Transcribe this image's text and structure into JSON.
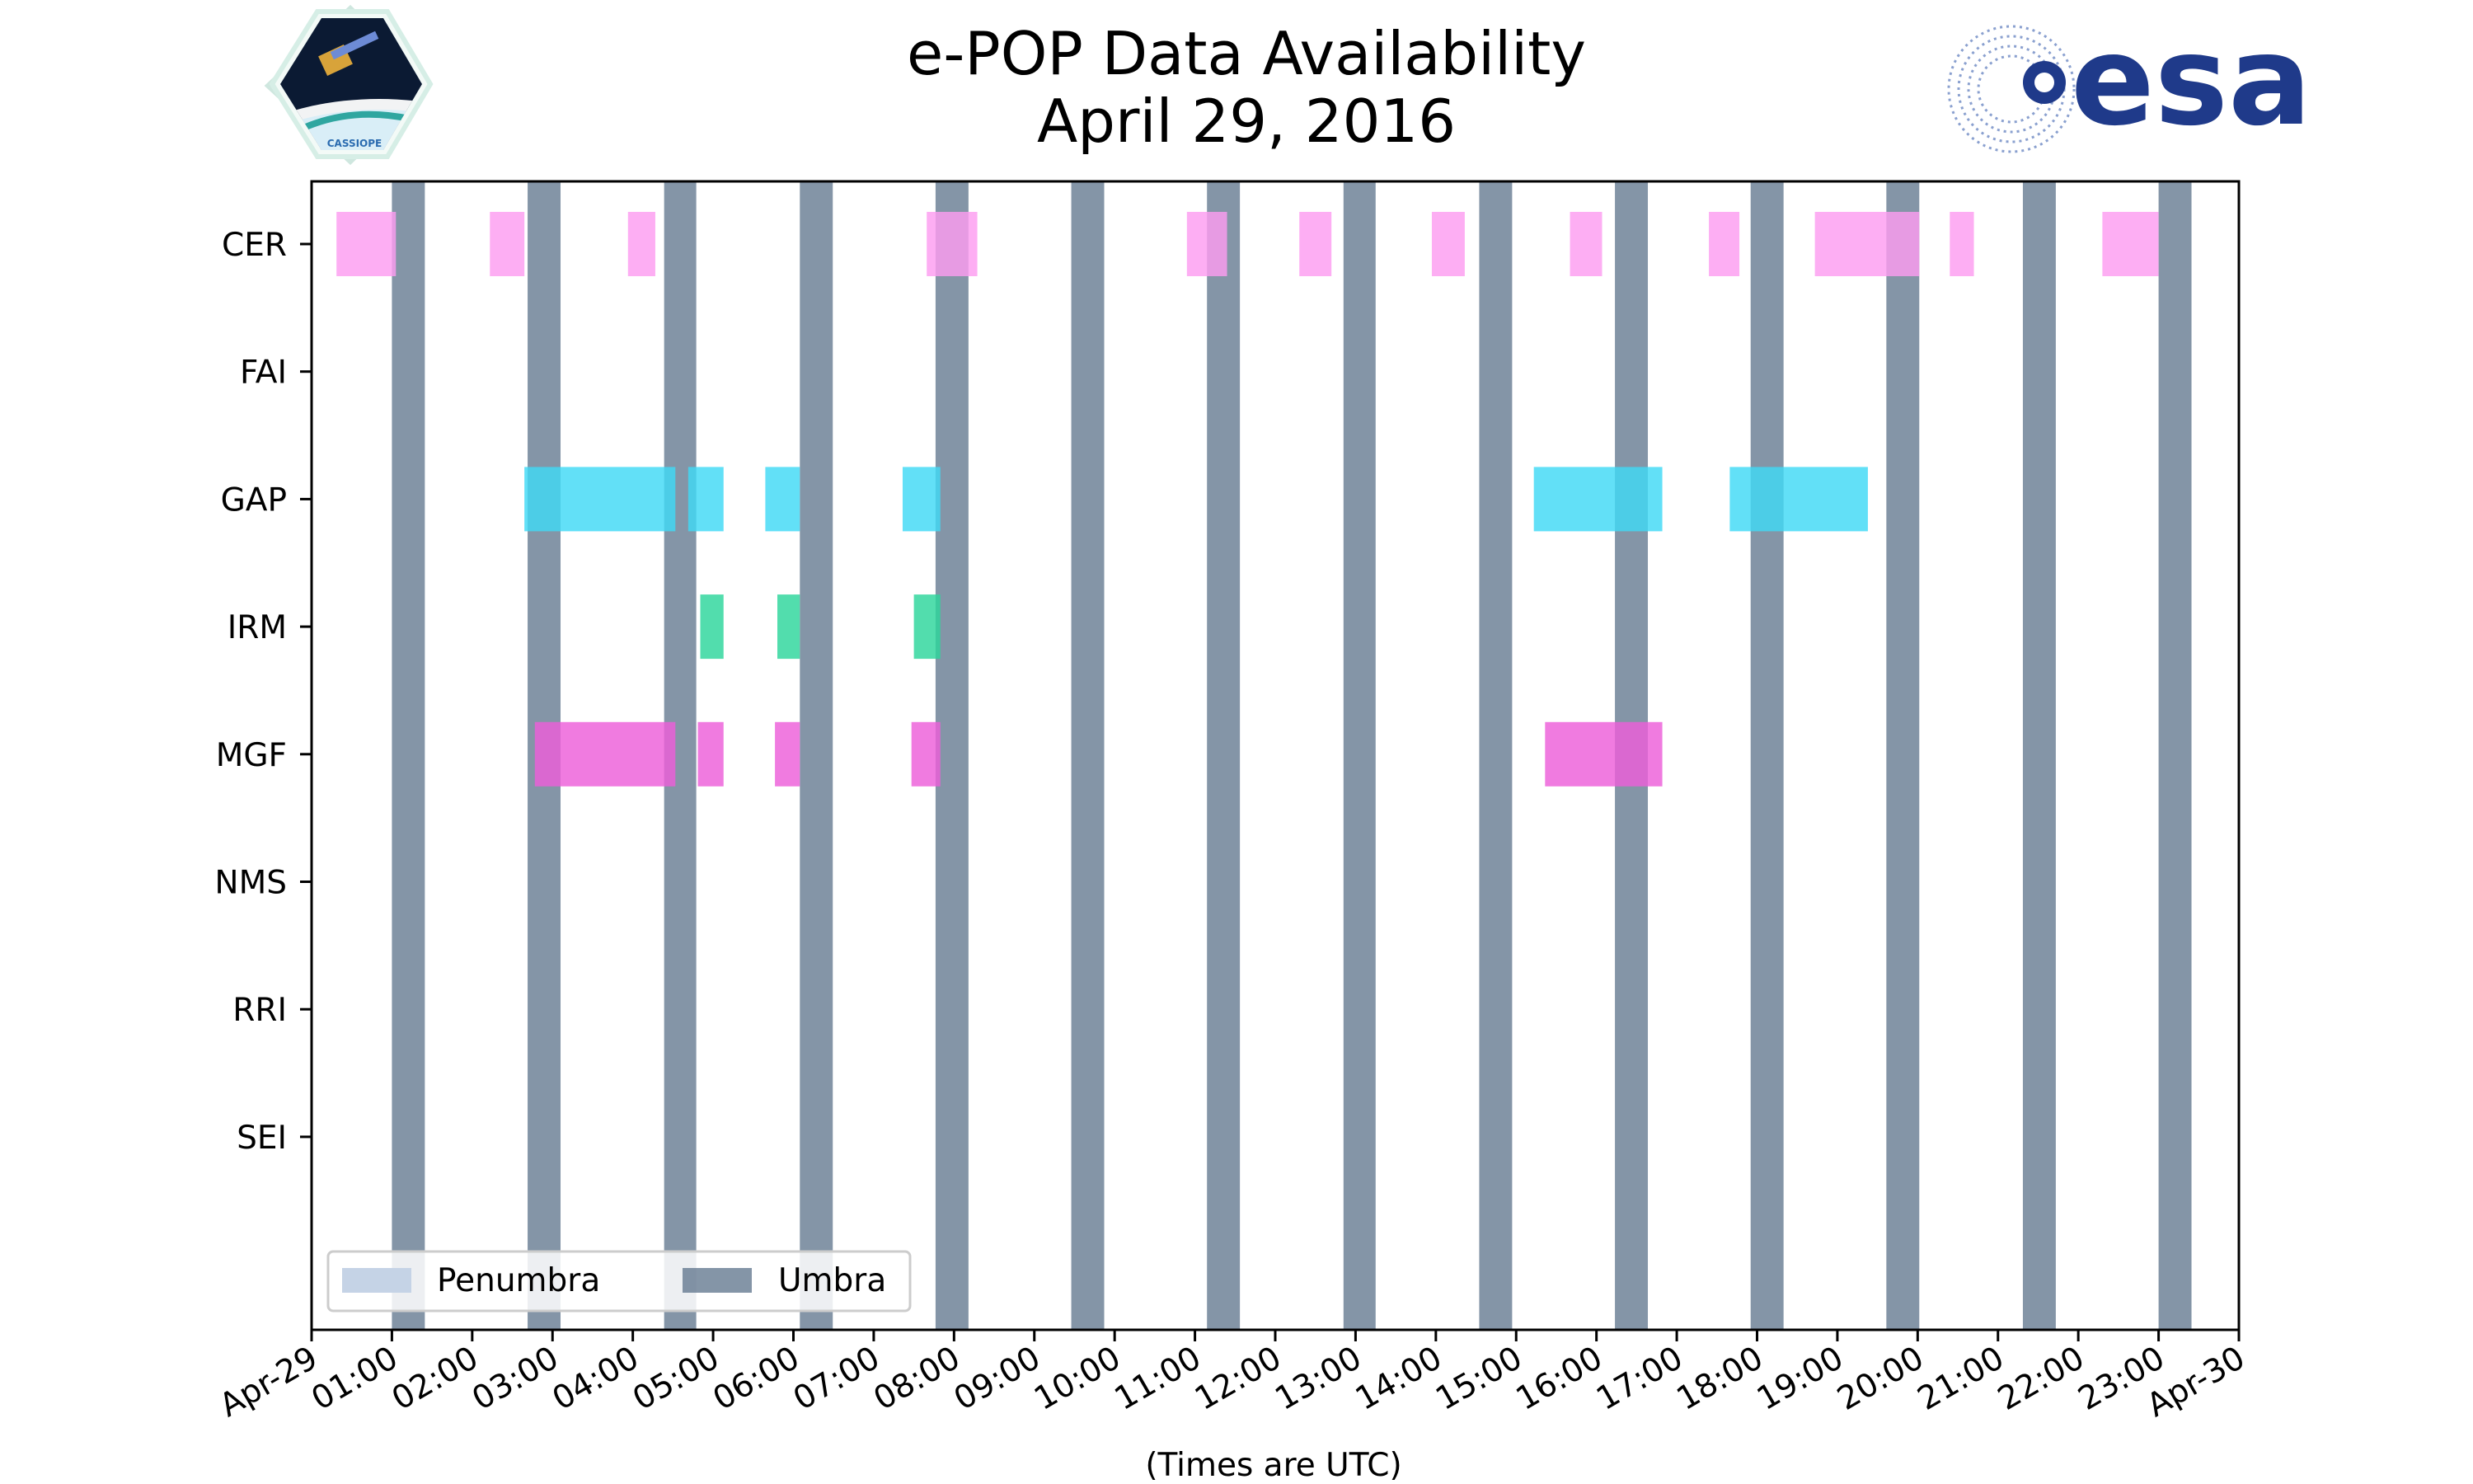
{
  "logos": {
    "left_text": "CASSIOPE",
    "right_text": "esa",
    "right_color": "#1f3a8a"
  },
  "chart_data": {
    "type": "timeline",
    "title": "e-POP Data Availability",
    "subtitle": "April 29, 2016",
    "xlabel": "(Times are UTC)",
    "ylabel": "",
    "x_range_hours": [
      0,
      24
    ],
    "x_tick_labels": [
      "Apr-29",
      "01:00",
      "02:00",
      "03:00",
      "04:00",
      "05:00",
      "06:00",
      "07:00",
      "08:00",
      "09:00",
      "10:00",
      "11:00",
      "12:00",
      "13:00",
      "14:00",
      "15:00",
      "16:00",
      "17:00",
      "18:00",
      "19:00",
      "20:00",
      "21:00",
      "22:00",
      "23:00",
      "Apr-30"
    ],
    "instruments": [
      "CER",
      "FAI",
      "GAP",
      "IRM",
      "MGF",
      "NMS",
      "RRI",
      "SEI"
    ],
    "colors": {
      "CER": "#fc9cf0",
      "GAP": "#40d9f5",
      "IRM": "#2cd59b",
      "MGF": "#ed5ed9",
      "umbra": "#5b7189",
      "penumbra": "#c5d3e6"
    },
    "legend": {
      "location": "lower-left",
      "entries": [
        "Penumbra",
        "Umbra"
      ]
    },
    "umbra_intervals": [
      [
        1.0,
        1.41
      ],
      [
        2.69,
        3.1
      ],
      [
        4.39,
        4.79
      ],
      [
        6.08,
        6.49
      ],
      [
        7.77,
        8.18
      ],
      [
        9.46,
        9.87
      ],
      [
        11.15,
        11.56
      ],
      [
        12.85,
        13.25
      ],
      [
        14.54,
        14.95
      ],
      [
        16.23,
        16.64
      ],
      [
        17.92,
        18.33
      ],
      [
        19.61,
        20.02
      ],
      [
        21.31,
        21.72
      ],
      [
        23.0,
        23.41
      ]
    ],
    "availability": {
      "CER": [
        [
          0.31,
          1.05
        ],
        [
          2.22,
          2.65
        ],
        [
          3.94,
          4.28
        ],
        [
          7.66,
          8.29
        ],
        [
          10.9,
          11.4
        ],
        [
          12.3,
          12.7
        ],
        [
          13.95,
          14.36
        ],
        [
          15.67,
          16.07
        ],
        [
          17.4,
          17.78
        ],
        [
          18.72,
          20.02
        ],
        [
          20.4,
          20.7
        ],
        [
          22.3,
          23.0
        ]
      ],
      "FAI": [],
      "GAP": [
        [
          2.65,
          4.53
        ],
        [
          4.69,
          5.13
        ],
        [
          5.65,
          6.08
        ],
        [
          7.36,
          7.83
        ],
        [
          15.22,
          16.82
        ],
        [
          17.66,
          19.38
        ]
      ],
      "IRM": [
        [
          4.84,
          5.13
        ],
        [
          5.8,
          6.08
        ],
        [
          7.5,
          7.83
        ]
      ],
      "MGF": [
        [
          2.78,
          4.53
        ],
        [
          4.81,
          5.13
        ],
        [
          5.77,
          6.08
        ],
        [
          7.47,
          7.83
        ],
        [
          15.36,
          16.82
        ]
      ],
      "NMS": [],
      "RRI": [],
      "SEI": []
    }
  }
}
